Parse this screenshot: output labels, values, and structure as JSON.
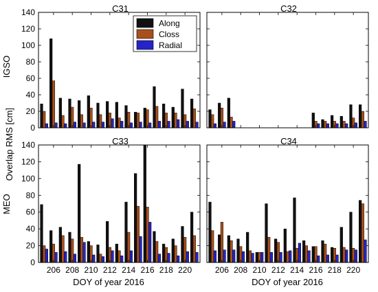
{
  "figure": {
    "ylabel": "Overlap RMS [cm]",
    "row_labels": [
      "IGSO",
      "MEO"
    ],
    "xlabel": "DOY of year 2016"
  },
  "legend": {
    "placement": "top-right of C31 panel",
    "entries": [
      {
        "name": "Along",
        "color": "#111111"
      },
      {
        "name": "Closs",
        "color": "#a8501c"
      },
      {
        "name": "Radial",
        "color": "#2424c8"
      }
    ]
  },
  "colors": {
    "Along": "#111111",
    "Closs": "#a8501c",
    "Radial": "#2424c8"
  },
  "chart_data": [
    {
      "type": "bar",
      "title": "C31",
      "x": [
        205,
        206,
        207,
        208,
        209,
        210,
        211,
        212,
        213,
        214,
        215,
        216,
        217,
        218,
        219,
        220,
        221
      ],
      "xticks": [
        206,
        208,
        210,
        212,
        214,
        216,
        218,
        220
      ],
      "xlim": [
        204.4,
        221.6
      ],
      "ylim": [
        0,
        140
      ],
      "yticks": [
        0,
        20,
        40,
        60,
        80,
        100,
        120,
        140
      ],
      "series": [
        {
          "name": "Along",
          "values": [
            29,
            108,
            36,
            35,
            33,
            39,
            30,
            32,
            31,
            27,
            19,
            24,
            50,
            29,
            25,
            47,
            35
          ]
        },
        {
          "name": "Closs",
          "values": [
            20,
            57,
            15,
            25,
            16,
            24,
            16,
            18,
            12,
            19,
            18,
            22,
            26,
            18,
            18,
            16,
            23
          ]
        },
        {
          "name": "Radial",
          "values": [
            5,
            6,
            5,
            7,
            6,
            7,
            7,
            11,
            8,
            6,
            7,
            6,
            8,
            8,
            10,
            8,
            7
          ]
        }
      ]
    },
    {
      "type": "bar",
      "title": "C32",
      "x": [
        205,
        206,
        207,
        208,
        209,
        210,
        211,
        212,
        213,
        214,
        215,
        216,
        217,
        218,
        219,
        220,
        221
      ],
      "xticks": [
        206,
        208,
        210,
        212,
        214,
        216,
        218,
        220
      ],
      "xlim": [
        204.4,
        221.6
      ],
      "ylim": [
        0,
        140
      ],
      "yticks": [
        0,
        20,
        40,
        60,
        80,
        100,
        120,
        140
      ],
      "series": [
        {
          "name": "Along",
          "values": [
            22,
            30,
            36,
            null,
            null,
            null,
            null,
            null,
            null,
            null,
            null,
            18,
            10,
            15,
            14,
            28,
            28
          ]
        },
        {
          "name": "Closs",
          "values": [
            16,
            24,
            13,
            null,
            null,
            null,
            null,
            null,
            null,
            null,
            null,
            8,
            8,
            8,
            8,
            12,
            20
          ]
        },
        {
          "name": "Radial",
          "values": [
            5,
            7,
            8,
            null,
            null,
            null,
            null,
            null,
            null,
            null,
            null,
            5,
            5,
            5,
            5,
            6,
            8
          ]
        }
      ]
    },
    {
      "type": "bar",
      "title": "C33",
      "x": [
        205,
        206,
        207,
        208,
        209,
        210,
        211,
        212,
        213,
        214,
        215,
        216,
        217,
        218,
        219,
        220,
        221
      ],
      "xticks": [
        206,
        208,
        210,
        212,
        214,
        216,
        218,
        220
      ],
      "xlim": [
        204.4,
        221.6
      ],
      "ylim": [
        0,
        140
      ],
      "yticks": [
        0,
        20,
        40,
        60,
        80,
        100,
        120,
        140
      ],
      "series": [
        {
          "name": "Along",
          "values": [
            69,
            38,
            42,
            36,
            117,
            25,
            21,
            49,
            22,
            72,
            106,
            140,
            37,
            22,
            28,
            43,
            60
          ]
        },
        {
          "name": "Closs",
          "values": [
            20,
            22,
            32,
            28,
            30,
            20,
            10,
            18,
            14,
            36,
            67,
            66,
            25,
            18,
            20,
            30,
            32
          ]
        },
        {
          "name": "Radial",
          "values": [
            16,
            12,
            13,
            10,
            24,
            9,
            7,
            14,
            8,
            14,
            31,
            48,
            10,
            11,
            8,
            13,
            12
          ]
        }
      ]
    },
    {
      "type": "bar",
      "title": "C34",
      "x": [
        205,
        206,
        207,
        208,
        209,
        210,
        211,
        212,
        213,
        214,
        215,
        216,
        217,
        218,
        219,
        220,
        221
      ],
      "xticks": [
        206,
        208,
        210,
        212,
        214,
        216,
        218,
        220
      ],
      "xlim": [
        204.4,
        221.6
      ],
      "ylim": [
        0,
        140
      ],
      "yticks": [
        0,
        20,
        40,
        60,
        80,
        100,
        120,
        140
      ],
      "series": [
        {
          "name": "Along",
          "values": [
            72,
            33,
            32,
            28,
            36,
            12,
            70,
            28,
            40,
            77,
            26,
            19,
            26,
            18,
            42,
            60,
            74
          ]
        },
        {
          "name": "Closs",
          "values": [
            38,
            48,
            26,
            19,
            14,
            12,
            30,
            24,
            13,
            17,
            20,
            19,
            22,
            17,
            18,
            17,
            70
          ]
        },
        {
          "name": "Radial",
          "values": [
            14,
            15,
            15,
            13,
            11,
            12,
            12,
            12,
            14,
            23,
            14,
            8,
            9,
            9,
            15,
            15,
            27
          ]
        }
      ]
    }
  ]
}
